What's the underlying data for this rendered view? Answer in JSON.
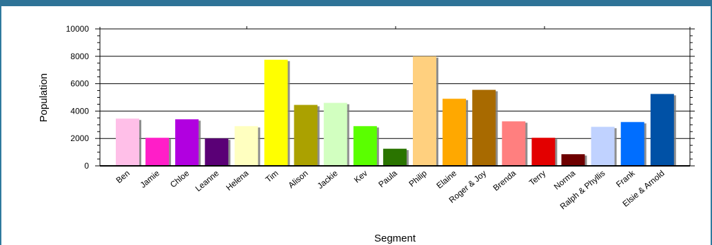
{
  "chart_data": {
    "type": "bar",
    "xlabel": "Segment",
    "ylabel": "Population",
    "ylim": [
      0,
      10000
    ],
    "yticks": [
      "0",
      "2000",
      "4000",
      "6000",
      "8000",
      "10000"
    ],
    "grid": true,
    "categories": [
      "Ben",
      "Jamie",
      "Chloe",
      "Leanne",
      "Helena",
      "Tim",
      "Alison",
      "Jackie",
      "Kev",
      "Paula",
      "Philip",
      "Elaine",
      "Roger & Joy",
      "Brenda",
      "Terry",
      "Norma",
      "Ralph & Phyllis",
      "Frank",
      "Elsie & Arnold"
    ],
    "values": [
      3450,
      2050,
      3400,
      2000,
      2900,
      7750,
      4450,
      4600,
      2900,
      1250,
      8000,
      4900,
      5550,
      3250,
      2050,
      850,
      2850,
      3200,
      5250
    ],
    "colors": [
      "#ffbfe8",
      "#ff1ec8",
      "#b100e0",
      "#5a0076",
      "#ffffc0",
      "#ffff00",
      "#aba100",
      "#d2ffc0",
      "#5aff00",
      "#2a7400",
      "#ffd07f",
      "#ffa800",
      "#a86a00",
      "#ff7f7f",
      "#e30000",
      "#6e0000",
      "#c0d2ff",
      "#006eff",
      "#0051a6"
    ]
  }
}
